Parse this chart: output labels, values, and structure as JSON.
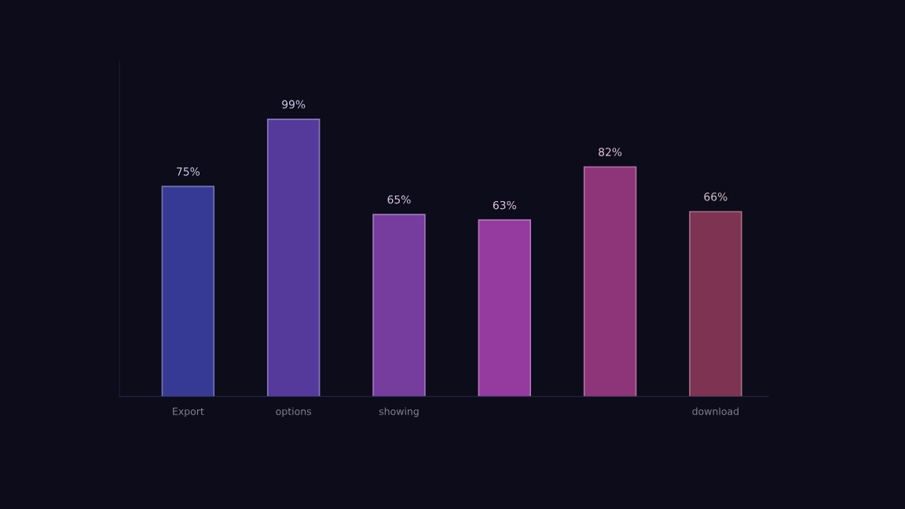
{
  "chart_data": {
    "type": "bar",
    "categories": [
      "Export",
      "options",
      "showing",
      null,
      null,
      "download"
    ],
    "values": [
      75,
      99,
      65,
      63,
      82,
      66
    ],
    "colors": [
      "#363a94",
      "#553a9c",
      "#763c9e",
      "#953a9e",
      "#8e3479",
      "#7e3352"
    ],
    "value_labels": [
      "75%",
      "99%",
      "65%",
      "63%",
      "82%",
      "66%"
    ],
    "grid": false,
    "tick_labels": "x"
  }
}
